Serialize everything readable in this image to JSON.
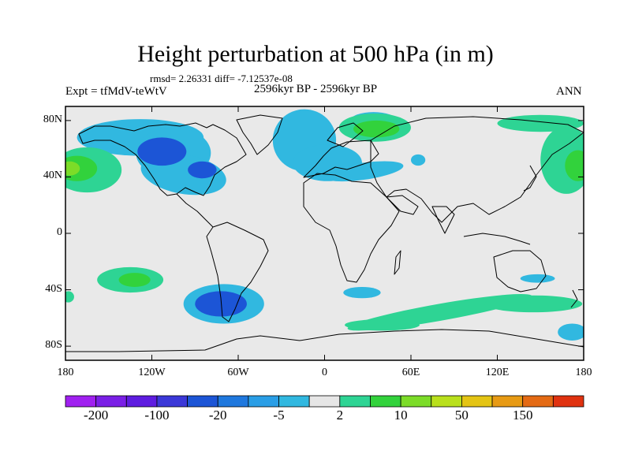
{
  "title": "Height perturbation at 500 hPa (in m)",
  "stats": "rmsd= 2.26331 diff= -7.12537e-08",
  "expt_label": "Expt = tfMdV-teWtV",
  "period_label": "2596kyr BP - 2596kyr BP",
  "season_label": "ANN",
  "map": {
    "projection": "cylindrical-equidistant",
    "lon_range": [
      -180,
      180
    ],
    "lat_range": [
      -90,
      90
    ],
    "background_color": "#e9e9e9",
    "lat_ticks": [
      {
        "value": 80,
        "label": "80N"
      },
      {
        "value": 40,
        "label": "40N"
      },
      {
        "value": 0,
        "label": "0"
      },
      {
        "value": -40,
        "label": "40S"
      },
      {
        "value": -80,
        "label": "80S"
      }
    ],
    "lon_ticks": [
      {
        "value": -180,
        "label": "180"
      },
      {
        "value": -120,
        "label": "120W"
      },
      {
        "value": -60,
        "label": "60W"
      },
      {
        "value": 0,
        "label": "0"
      },
      {
        "value": 60,
        "label": "60E"
      },
      {
        "value": 120,
        "label": "120E"
      },
      {
        "value": 180,
        "label": "180"
      }
    ],
    "anomaly_regions": [
      {
        "lon": -128,
        "lat": 68,
        "rlon": 44,
        "rlat": 13,
        "rot": 0,
        "level": "-5"
      },
      {
        "lon": -105,
        "lat": 57,
        "rlon": 26,
        "rlat": 18,
        "rot": 0,
        "level": "-5"
      },
      {
        "lon": -98,
        "lat": 42,
        "rlon": 30,
        "rlat": 14,
        "rot": 10,
        "level": "-5"
      },
      {
        "lon": -113,
        "lat": 58,
        "rlon": 17,
        "rlat": 10,
        "rot": 0,
        "level": "-20"
      },
      {
        "lon": -85,
        "lat": 45,
        "rlon": 10,
        "rlat": 6,
        "rot": 0,
        "level": "-20"
      },
      {
        "lon": -14,
        "lat": 66,
        "rlon": 22,
        "rlat": 22,
        "rot": 0,
        "level": "-5"
      },
      {
        "lon": 2,
        "lat": 50,
        "rlon": 24,
        "rlat": 13,
        "rot": 0,
        "level": "-5"
      },
      {
        "lon": 27,
        "lat": 44,
        "rlon": 28,
        "rlat": 6,
        "rot": -8,
        "level": "-5"
      },
      {
        "lon": 34,
        "lat": 80,
        "rlon": 16,
        "rlat": 6,
        "rot": 0,
        "level": "-5"
      },
      {
        "lon": 65,
        "lat": 52,
        "rlon": 5,
        "rlat": 4,
        "rot": 0,
        "level": "-5"
      },
      {
        "lon": 35,
        "lat": 75,
        "rlon": 25,
        "rlat": 10,
        "rot": 0,
        "level": "2"
      },
      {
        "lon": 36,
        "lat": 74,
        "rlon": 16,
        "rlat": 6,
        "rot": 0,
        "level": "10"
      },
      {
        "lon": -165,
        "lat": 45,
        "rlon": 24,
        "rlat": 16,
        "rot": 0,
        "level": "2"
      },
      {
        "lon": -172,
        "lat": 46,
        "rlon": 14,
        "rlat": 9,
        "rot": 0,
        "level": "10"
      },
      {
        "lon": -177,
        "lat": 46,
        "rlon": 7,
        "rlat": 5,
        "rot": 0,
        "level": "20"
      },
      {
        "lon": 168,
        "lat": 52,
        "rlon": 18,
        "rlat": 24,
        "rot": 0,
        "level": "2"
      },
      {
        "lon": 176,
        "lat": 48,
        "rlon": 9,
        "rlat": 11,
        "rot": 0,
        "level": "10"
      },
      {
        "lon": 150,
        "lat": 78,
        "rlon": 30,
        "rlat": 6,
        "rot": 0,
        "level": "2"
      },
      {
        "lon": 148,
        "lat": -32,
        "rlon": 12,
        "rlat": 3,
        "rot": 0,
        "level": "-5"
      },
      {
        "lon": -135,
        "lat": -33,
        "rlon": 23,
        "rlat": 9,
        "rot": 0,
        "level": "2"
      },
      {
        "lon": -132,
        "lat": -33,
        "rlon": 11,
        "rlat": 5,
        "rot": 0,
        "level": "10"
      },
      {
        "lon": -70,
        "lat": -50,
        "rlon": 28,
        "rlat": 14,
        "rot": 0,
        "level": "-5"
      },
      {
        "lon": -72,
        "lat": -50,
        "rlon": 18,
        "rlat": 9,
        "rot": 0,
        "level": "-20"
      },
      {
        "lon": 26,
        "lat": -42,
        "rlon": 13,
        "rlat": 4,
        "rot": 0,
        "level": "-5"
      },
      {
        "lon": 80,
        "lat": -56,
        "rlon": 65,
        "rlat": 6,
        "rot": -10,
        "level": "2"
      },
      {
        "lon": 40,
        "lat": -65,
        "rlon": 26,
        "rlat": 4,
        "rot": 0,
        "level": "2"
      },
      {
        "lon": 145,
        "lat": -50,
        "rlon": 34,
        "rlat": 6,
        "rot": 0,
        "level": "2"
      },
      {
        "lon": 172,
        "lat": -70,
        "rlon": 10,
        "rlat": 6,
        "rot": 0,
        "level": "-5"
      },
      {
        "lon": -178,
        "lat": -45,
        "rlon": 4,
        "rlat": 4,
        "rot": 0,
        "level": "2"
      }
    ]
  },
  "colorbar": {
    "colors": [
      "#a020f0",
      "#7a1fe6",
      "#5e1ce0",
      "#3b38d8",
      "#1c55d6",
      "#1f78de",
      "#2a9ee6",
      "#31b8e0",
      "#e6e6e6",
      "#2ed494",
      "#32d23c",
      "#7cdc28",
      "#b9e01c",
      "#e4c414",
      "#e79a14",
      "#e46a14",
      "#e03210"
    ],
    "labels": [
      "-200",
      "-100",
      "-20",
      "-5",
      "2",
      "10",
      "50",
      "150"
    ],
    "level_color_index": {
      "-20": 4,
      "-5": 7,
      "2": 9,
      "10": 10,
      "20": 11
    }
  }
}
